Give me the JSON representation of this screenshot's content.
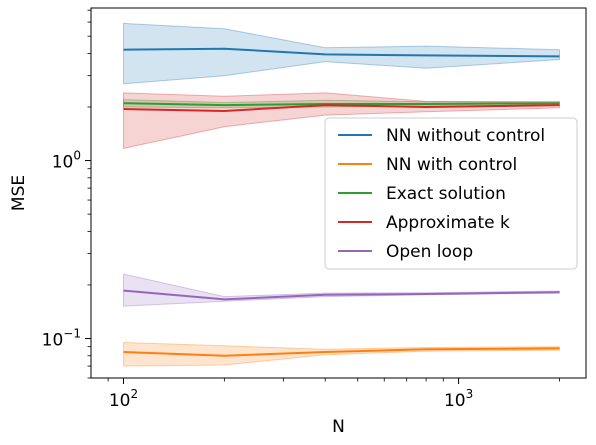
{
  "chart_data": {
    "type": "line",
    "title": "",
    "xlabel": "N",
    "ylabel": "MSE",
    "xscale": "log",
    "yscale": "log",
    "xlim": [
      80,
      2400
    ],
    "ylim": [
      0.06,
      7.2
    ],
    "grid": false,
    "legend_position": "right",
    "x": [
      100,
      200,
      400,
      800,
      2000
    ],
    "x_ticks": [
      {
        "value": 100,
        "base": "10",
        "exp": "2"
      },
      {
        "value": 1000,
        "base": "10",
        "exp": "3"
      }
    ],
    "y_ticks": [
      {
        "value": 0.1,
        "base": "10",
        "exp": "−1"
      },
      {
        "value": 1,
        "base": "10",
        "exp": "0"
      }
    ],
    "series": [
      {
        "name": "NN without control",
        "color": "#1f77b4",
        "values": [
          4.2,
          4.25,
          3.95,
          3.9,
          3.85
        ],
        "lower": [
          2.7,
          3.0,
          3.6,
          3.3,
          3.7
        ],
        "upper": [
          5.9,
          5.5,
          4.3,
          4.4,
          4.2
        ]
      },
      {
        "name": "NN with control",
        "color": "#ff7f0e",
        "values": [
          0.084,
          0.08,
          0.084,
          0.087,
          0.088
        ],
        "lower": [
          0.07,
          0.071,
          0.081,
          0.085,
          0.086
        ],
        "upper": [
          0.095,
          0.091,
          0.087,
          0.089,
          0.09
        ]
      },
      {
        "name": "Exact solution",
        "color": "#2ca02c",
        "values": [
          2.1,
          2.05,
          2.08,
          2.08,
          2.1
        ],
        "lower": [
          2.0,
          1.98,
          2.0,
          2.02,
          2.05
        ],
        "upper": [
          2.2,
          2.12,
          2.18,
          2.14,
          2.15
        ]
      },
      {
        "name": "Approximate k",
        "color": "#d62728",
        "values": [
          1.95,
          1.9,
          2.05,
          2.0,
          2.05
        ],
        "lower": [
          1.17,
          1.55,
          1.8,
          1.88,
          1.98
        ],
        "upper": [
          2.4,
          2.3,
          2.4,
          2.15,
          2.12
        ]
      },
      {
        "name": "Open loop",
        "color": "#9467bd",
        "values": [
          0.186,
          0.166,
          0.176,
          0.178,
          0.182
        ],
        "lower": [
          0.152,
          0.162,
          0.172,
          0.176,
          0.18
        ],
        "upper": [
          0.23,
          0.172,
          0.18,
          0.181,
          0.185
        ]
      }
    ]
  }
}
